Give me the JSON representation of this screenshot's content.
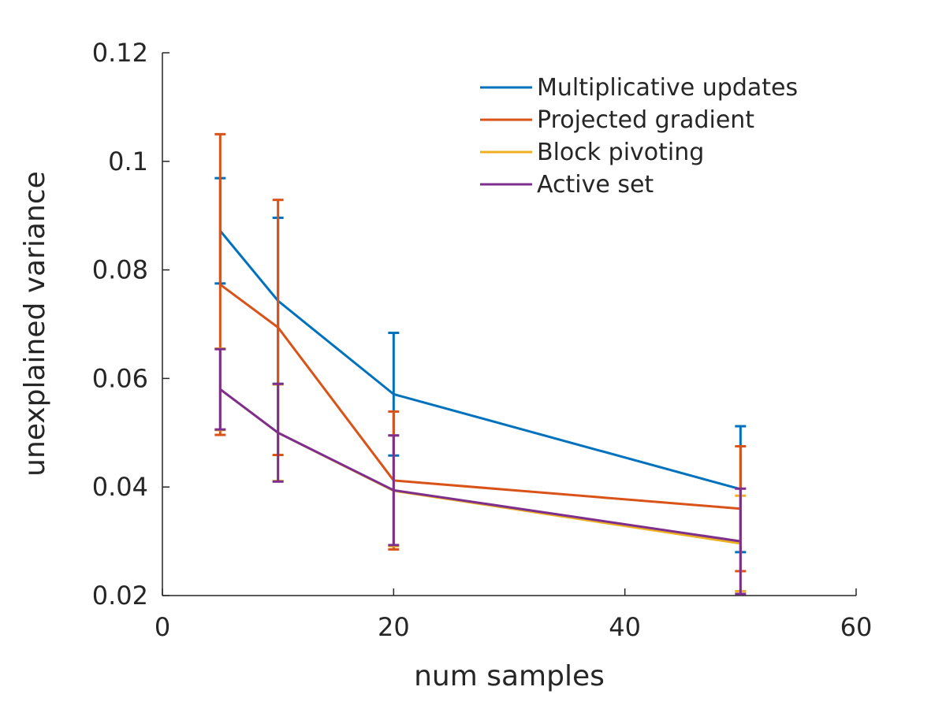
{
  "chart_data": {
    "type": "line",
    "title": "",
    "xlabel": "num samples",
    "ylabel": "unexplained variance",
    "xlim": [
      0,
      60
    ],
    "ylim": [
      0.02,
      0.12
    ],
    "xticks": [
      "0",
      "20",
      "40",
      "60"
    ],
    "yticks": [
      "0.02",
      "0.04",
      "0.06",
      "0.08",
      "0.1",
      "0.12"
    ],
    "grid": false,
    "legend_position": "top-right",
    "x": [
      5,
      10,
      20,
      50
    ],
    "series": [
      {
        "name": "Multiplicative updates",
        "color": "#0072bd",
        "values": [
          0.0872,
          0.0743,
          0.0571,
          0.0396
        ],
        "error": [
          0.0097,
          0.0153,
          0.0113,
          0.0116
        ]
      },
      {
        "name": "Projected gradient",
        "color": "#d95319",
        "values": [
          0.0773,
          0.0694,
          0.0412,
          0.036
        ],
        "error": [
          0.0277,
          0.0235,
          0.0127,
          0.0115
        ]
      },
      {
        "name": "Block pivoting",
        "color": "#edb120",
        "values": [
          0.058,
          0.05,
          0.0393,
          0.0296
        ],
        "error": [
          0.0075,
          0.0089,
          0.0102,
          0.0088
        ]
      },
      {
        "name": "Active set",
        "color": "#7e2f8e",
        "values": [
          0.058,
          0.05,
          0.0394,
          0.03
        ],
        "error": [
          0.0074,
          0.009,
          0.0101,
          0.0097
        ]
      }
    ]
  }
}
